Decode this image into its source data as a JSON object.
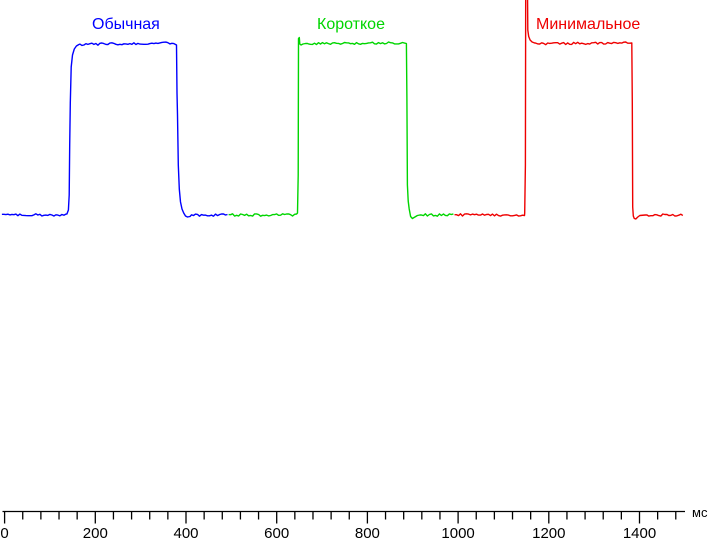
{
  "page": {
    "background_color": "#FFFFFF",
    "description_labels": {
      "x_unit": "мс"
    }
  },
  "chart_data": {
    "type": "line",
    "title": "",
    "xlabel": "мс",
    "ylabel": "",
    "x_range_ms": [
      0,
      1510
    ],
    "x_major_tick_step_ms": 200,
    "x_minor_tick_step_ms": 40,
    "x_major_ticks": [
      0,
      200,
      400,
      600,
      800,
      1000,
      1200,
      1400
    ],
    "x_minor_tick_last_ms": 1480,
    "axis_color": "#000000",
    "grid": false,
    "y_axis_shown": false,
    "legend_position": "labels-above-each-pulse",
    "series": [
      {
        "name": "Обычная",
        "color": "#0000FF",
        "overshoot": "none",
        "rise_shape": "rounded",
        "segment_start_ms": -6,
        "rise_ms": 144,
        "fall_ms": 379,
        "segment_end_ms": 494,
        "baseline_level": 0,
        "high_level": 1
      },
      {
        "name": "Короткое",
        "color": "#00D500",
        "overshoot": "small",
        "rise_shape": "sharp-small-spike",
        "segment_start_ms": 494,
        "rise_ms": 648,
        "fall_ms": 886,
        "segment_end_ms": 992,
        "baseline_level": 0,
        "high_level": 1
      },
      {
        "name": "Минимальное",
        "color": "#EE0000",
        "overshoot": "large-clipped-at-top",
        "rise_shape": "sharp-huge-spike",
        "segment_start_ms": 992,
        "rise_ms": 1149,
        "fall_ms": 1383,
        "segment_end_ms": 1497,
        "baseline_level": 0,
        "high_level": 1
      }
    ]
  }
}
